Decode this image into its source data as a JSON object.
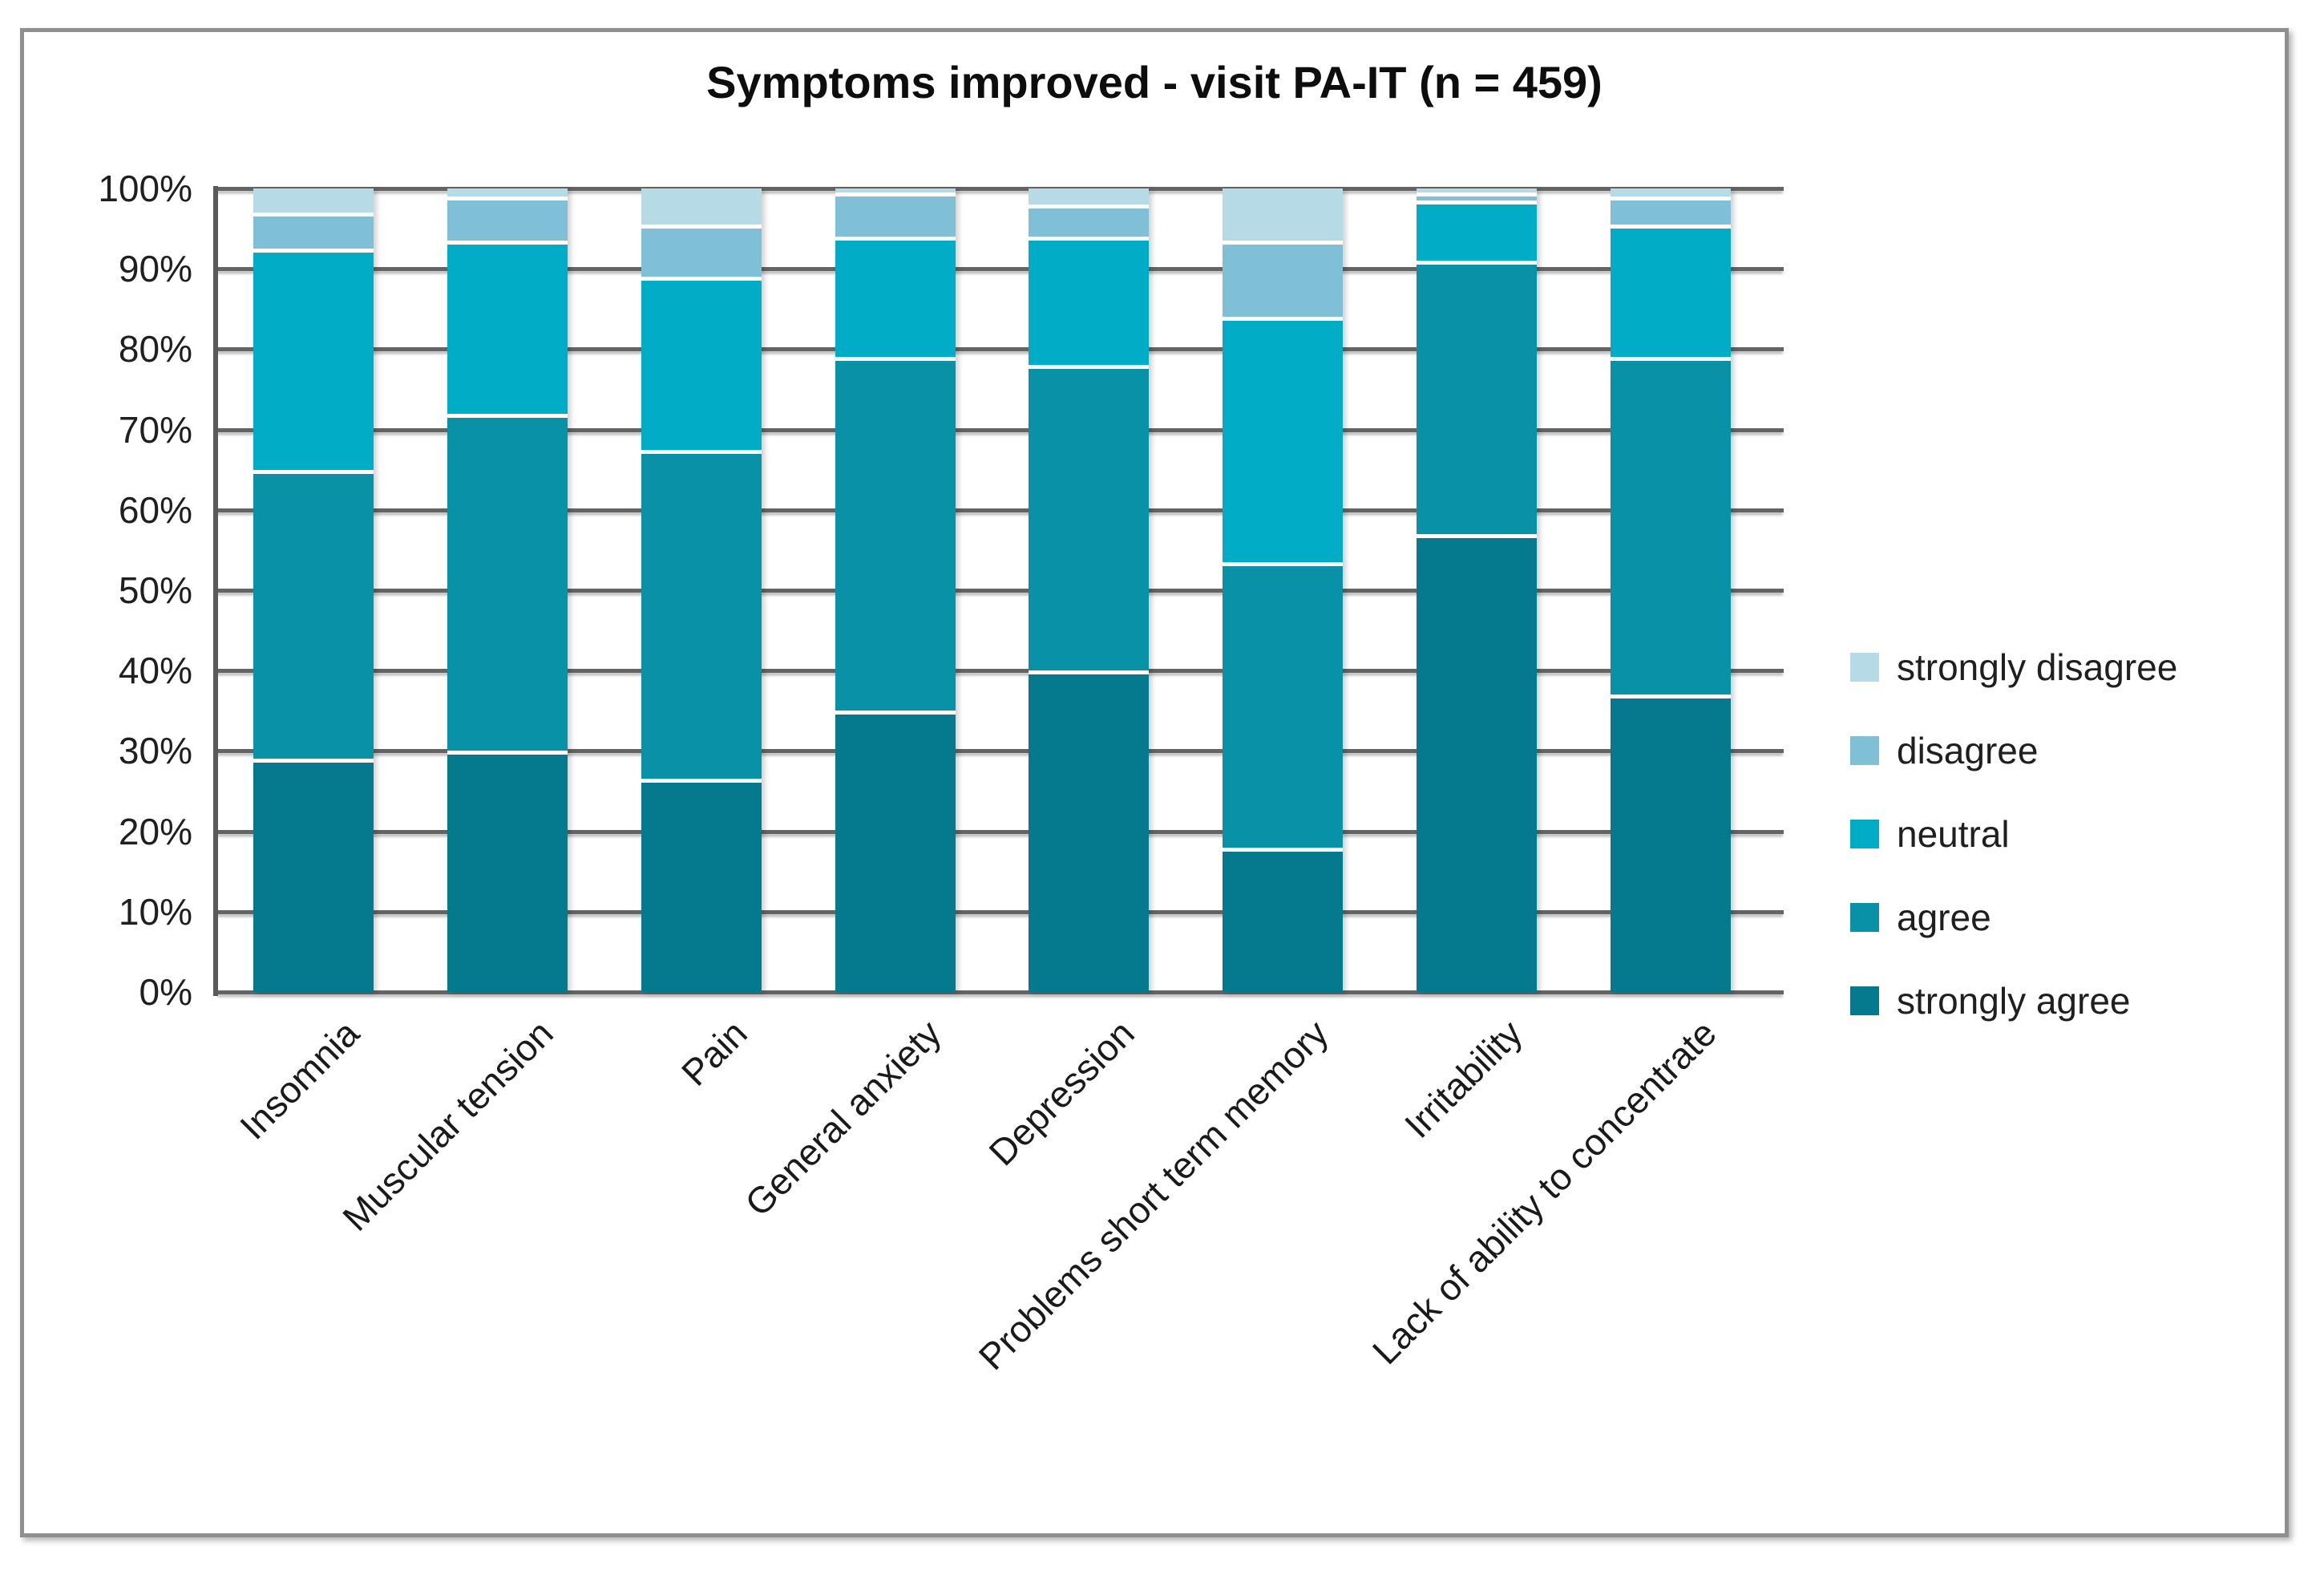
{
  "figure": {
    "title": "Symptoms improved - visit PA-IT (n = 459)",
    "background": "#ffffff",
    "border_color": "#8f8f8f"
  },
  "chart_data": {
    "type": "bar",
    "variant": "100-percent-stacked-column",
    "title": "Symptoms improved - visit PA-IT (n = 459)",
    "grid": true,
    "categories": [
      "Insomnia",
      "Muscular tension",
      "Pain",
      "General anxiety",
      "Depression",
      "Problems short term memory",
      "Irritability",
      "Lack of ability to concentrate"
    ],
    "series": [
      {
        "name": "strongly agree",
        "color": "#057A8F",
        "values": [
          29,
          30,
          26.5,
          35,
          40,
          18,
          57,
          37
        ]
      },
      {
        "name": "agree",
        "color": "#0991A8",
        "values": [
          36,
          42,
          41,
          44,
          38,
          35.5,
          34,
          42
        ]
      },
      {
        "name": "neutral",
        "color": "#00ACC6",
        "values": [
          27.5,
          21.5,
          21.5,
          15,
          16,
          30.5,
          7.5,
          16.5
        ]
      },
      {
        "name": "disagree",
        "color": "#7FC0D6",
        "values": [
          4.5,
          5.5,
          6.5,
          5.5,
          4,
          9.5,
          1,
          3.5
        ]
      },
      {
        "name": "strongly disagree",
        "color": "#B7DAE7",
        "values": [
          3,
          1,
          4.5,
          0.5,
          2,
          6.5,
          0.5,
          1
        ]
      }
    ],
    "stack_order_bottom_to_top": [
      "strongly agree",
      "agree",
      "neutral",
      "disagree",
      "strongly disagree"
    ],
    "y_axis": {
      "min": 0,
      "max": 100,
      "step": 10,
      "tick_labels": [
        "0%",
        "10%",
        "20%",
        "30%",
        "40%",
        "50%",
        "60%",
        "70%",
        "80%",
        "90%",
        "100%"
      ]
    },
    "legend": {
      "position": "right",
      "items_top_to_bottom": [
        "strongly disagree",
        "disagree",
        "neutral",
        "agree",
        "strongly agree"
      ]
    },
    "colors": {
      "gridline": "#646464",
      "axis_line": "#5a5a5a",
      "text": "#1f1f1f",
      "separator": "#ffffff"
    }
  }
}
